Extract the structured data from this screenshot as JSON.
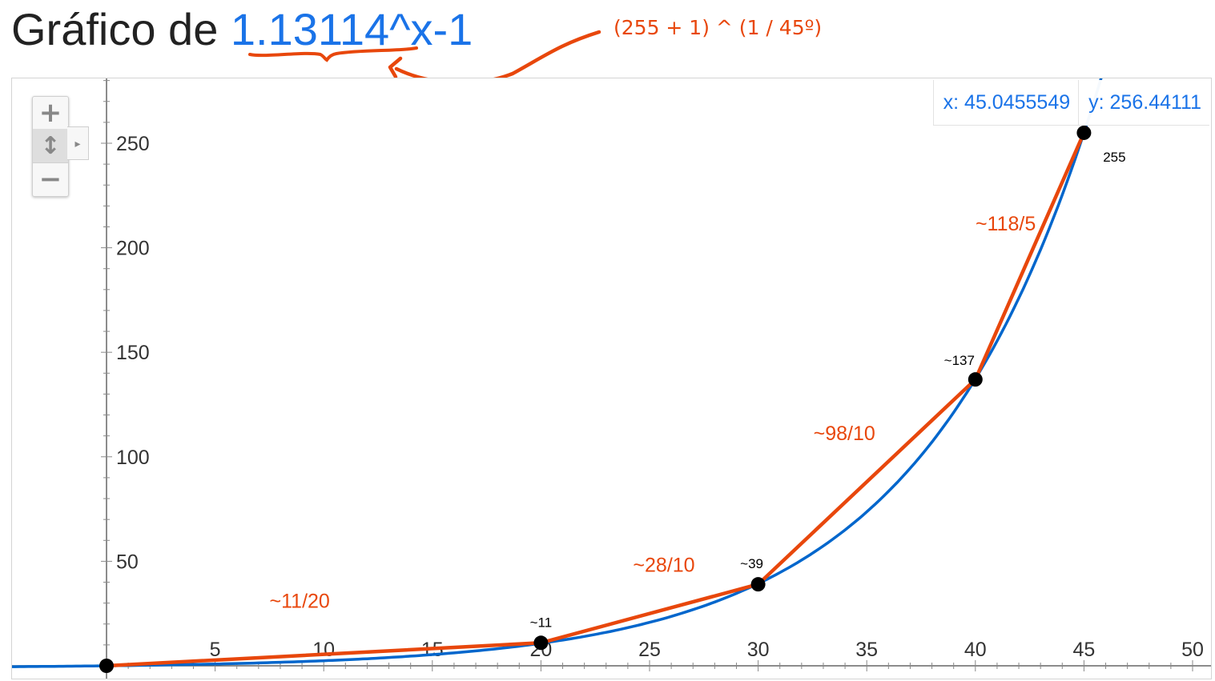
{
  "title": {
    "prefix": "Gráfico de ",
    "base": "1.13114",
    "suffix": "^x-1"
  },
  "annotation_formula": "(255 + 1) ^ (1 / 45º)",
  "readout": {
    "x": "x: 45.0455549",
    "y": "y: 256.44111"
  },
  "zoom_controls": {
    "in": "+",
    "pan": "↕",
    "expand": "▸",
    "out": "−"
  },
  "colors": {
    "curve": "#0066cc",
    "approx": "#e8470c",
    "points": "#000000",
    "axis": "#666666",
    "title_fn": "#1a73e8"
  },
  "chart_data": {
    "type": "line",
    "function": "1.13114^x-1",
    "xlim": [
      0,
      50
    ],
    "ylim": [
      0,
      280
    ],
    "x_ticks": [
      5,
      10,
      15,
      20,
      25,
      30,
      35,
      40,
      45,
      50
    ],
    "y_ticks": [
      50,
      100,
      150,
      200,
      250
    ],
    "curve_base": 1.13114,
    "points": [
      {
        "x": 0,
        "y": 0,
        "label": ""
      },
      {
        "x": 20,
        "y": 11,
        "label": "~11"
      },
      {
        "x": 30,
        "y": 39,
        "label": "~39"
      },
      {
        "x": 40,
        "y": 137,
        "label": "~137"
      },
      {
        "x": 45,
        "y": 255,
        "label": "255"
      }
    ],
    "segment_labels": [
      "~11/20",
      "~28/10",
      "~98/10",
      "~118/5"
    ]
  }
}
